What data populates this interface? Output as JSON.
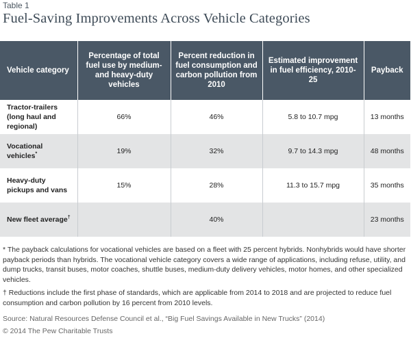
{
  "table_label": "Table 1",
  "title": "Fuel-Saving Improvements Across Vehicle Categories",
  "columns": [
    "Vehicle  category",
    "Percentage of total fuel use by medium- and heavy-duty vehicles",
    "Percent reduction in fuel consumption and carbon pollution from 2010",
    "Estimated improvement in fuel efficiency, 2010-25",
    "Payback"
  ],
  "rows": [
    {
      "category": "Tractor-trailers (long haul  and regional)",
      "mark": "",
      "fuel_use": "66%",
      "reduction": "46%",
      "efficiency": "5.8 to 10.7 mpg",
      "payback": "13 months"
    },
    {
      "category": "Vocational vehicles",
      "mark": "*",
      "fuel_use": "19%",
      "reduction": "32%",
      "efficiency": "9.7 to 14.3 mpg",
      "payback": "48 months"
    },
    {
      "category": "Heavy-duty pickups and vans",
      "mark": "",
      "fuel_use": "15%",
      "reduction": "28%",
      "efficiency": "11.3 to 15.7 mpg",
      "payback": "35 months"
    },
    {
      "category": "New fleet average",
      "mark": "†",
      "fuel_use": "",
      "reduction": "40%",
      "efficiency": "",
      "payback": "23 months"
    }
  ],
  "notes": {
    "asterisk": "* The payback calculations for vocational vehicles are based on a fleet with 25 percent hybrids. Nonhybrids would have shorter payback periods than hybrids. The vocational vehicle category covers a wide range of applications, including refuse, utility, and dump trucks, transit buses, motor coaches, shuttle buses, medium-duty delivery vehicles, motor homes, and other specialized vehicles.",
    "dagger": "† Reductions include the first phase of standards, which are applicable from 2014 to 2018 and are projected to reduce fuel consumption and carbon pollution by 16 percent from 2010 levels."
  },
  "source": "Source: Natural Resources Defense Council et al., “Big Fuel Savings Available in New Trucks” (2014)",
  "copyright": "© 2014 The Pew Charitable Trusts"
}
